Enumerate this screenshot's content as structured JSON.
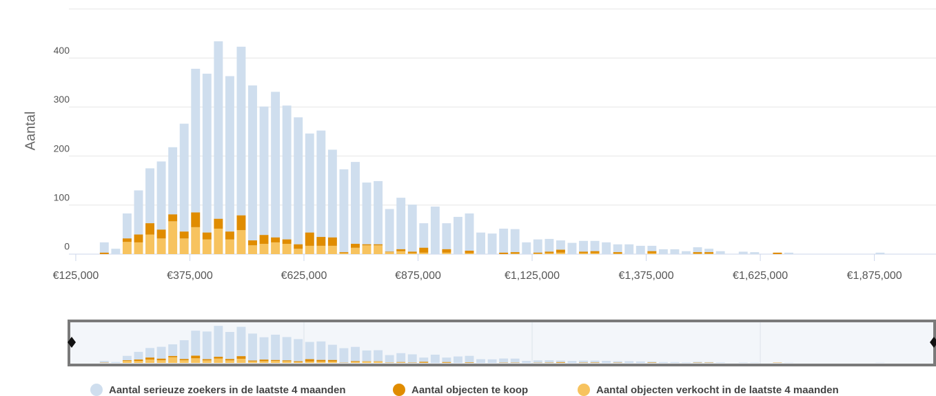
{
  "chart_data": {
    "type": "bar",
    "y_label": "Aantal",
    "x": [
      187500,
      212500,
      237500,
      262500,
      287500,
      312500,
      337500,
      362500,
      387500,
      412500,
      437500,
      462500,
      487500,
      512500,
      537500,
      562500,
      587500,
      612500,
      637500,
      662500,
      687500,
      712500,
      737500,
      762500,
      787500,
      812500,
      837500,
      862500,
      887500,
      912500,
      937500,
      962500,
      987500,
      1012500,
      1037500,
      1062500,
      1087500,
      1112500,
      1137500,
      1162500,
      1187500,
      1212500,
      1237500,
      1262500,
      1287500,
      1312500,
      1337500,
      1362500,
      1387500,
      1412500,
      1437500,
      1462500,
      1487500,
      1512500,
      1537500,
      1562500,
      1587500,
      1612500,
      1637500,
      1662500,
      1687500,
      1712500,
      1737500,
      1762500,
      1787500,
      1812500,
      1837500,
      1862500,
      1887500
    ],
    "series": [
      {
        "name": "Aantal serieuze zoekers in de laatste 4 maanden",
        "color": "#cfdeee",
        "values": [
          24,
          11,
          83,
          130,
          175,
          189,
          218,
          266,
          378,
          368,
          434,
          363,
          423,
          344,
          301,
          331,
          303,
          279,
          246,
          252,
          213,
          173,
          188,
          146,
          149,
          92,
          115,
          101,
          63,
          97,
          63,
          76,
          83,
          44,
          42,
          52,
          51,
          24,
          30,
          31,
          28,
          23,
          27,
          27,
          24,
          20,
          20,
          17,
          17,
          10,
          10,
          6,
          14,
          11,
          6,
          0,
          5,
          4,
          0,
          3,
          3,
          0,
          0,
          0,
          0,
          0,
          0,
          0,
          3
        ]
      },
      {
        "name": "Aantal objecten te koop",
        "color": "#e08c00",
        "values": [
          3,
          0,
          7,
          16,
          23,
          18,
          14,
          14,
          30,
          14,
          20,
          16,
          30,
          10,
          18,
          10,
          9,
          9,
          27,
          18,
          17,
          2,
          8,
          2,
          2,
          1,
          4,
          3,
          10,
          0,
          7,
          0,
          5,
          0,
          0,
          3,
          3,
          0,
          2,
          3,
          6,
          0,
          3,
          4,
          0,
          3,
          0,
          0,
          4,
          0,
          0,
          0,
          3,
          3,
          0,
          0,
          0,
          0,
          0,
          3,
          0,
          0,
          0,
          0,
          0,
          0,
          0,
          0,
          0
        ]
      },
      {
        "name": "Aantal objecten verkocht in de laatste 4 maanden",
        "color": "#f7c35f",
        "values": [
          0,
          0,
          25,
          24,
          40,
          32,
          67,
          32,
          55,
          30,
          52,
          30,
          49,
          18,
          21,
          24,
          21,
          11,
          17,
          17,
          17,
          2,
          13,
          18,
          18,
          4,
          6,
          2,
          3,
          0,
          3,
          0,
          2,
          0,
          0,
          0,
          1,
          0,
          1,
          2,
          3,
          0,
          2,
          2,
          0,
          1,
          0,
          0,
          2,
          0,
          0,
          0,
          1,
          1,
          0,
          0,
          0,
          0,
          0,
          0,
          0,
          0,
          0,
          0,
          0,
          0,
          0,
          0,
          0
        ]
      }
    ],
    "xlim": [
      110000,
      2010000
    ],
    "ylim": [
      0,
      500
    ],
    "yticks": [
      0,
      100,
      200,
      300,
      400
    ],
    "xticks": [
      {
        "value": 125000,
        "label": "€125,000"
      },
      {
        "value": 375000,
        "label": "€375,000"
      },
      {
        "value": 625000,
        "label": "€625,000"
      },
      {
        "value": 875000,
        "label": "€875,000"
      },
      {
        "value": 1125000,
        "label": "€1,125,000"
      },
      {
        "value": 1375000,
        "label": "€1,375,000"
      },
      {
        "value": 1625000,
        "label": "€1,625,000"
      },
      {
        "value": 1875000,
        "label": "€1,875,000"
      }
    ],
    "grid": true
  }
}
